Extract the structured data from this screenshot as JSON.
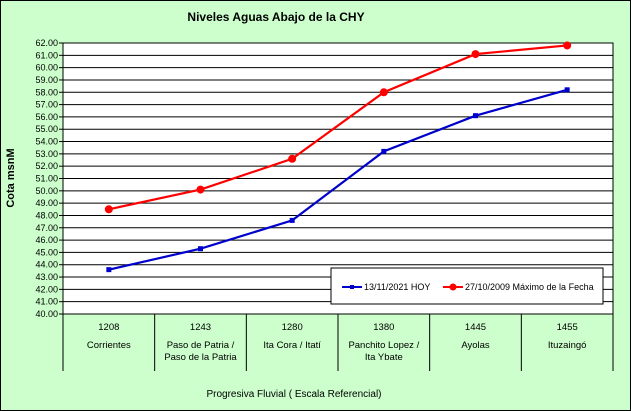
{
  "chart_data": {
    "type": "line",
    "title": "Niveles Aguas Abajo de la CHY",
    "ylabel": "Cota msnM",
    "xlabel": "Progresiva Fluvial ( Escala Referencial)",
    "ylim": [
      40.0,
      62.0
    ],
    "ytick_step": 1.0,
    "grid": true,
    "legend_position": "bottom-right",
    "categories": [
      {
        "code": "1208",
        "names": [
          "Corrientes"
        ]
      },
      {
        "code": "1243",
        "names": [
          "Paso de Patria /",
          "Paso de la Patria"
        ]
      },
      {
        "code": "1280",
        "names": [
          "Ita Cora / Itatí"
        ]
      },
      {
        "code": "1380",
        "names": [
          "Panchito Lopez /",
          "Ita Ybate"
        ]
      },
      {
        "code": "1445",
        "names": [
          "Ayolas"
        ]
      },
      {
        "code": "1455",
        "names": [
          "Ituzaingó"
        ]
      }
    ],
    "series": [
      {
        "name": "13/11/2021 HOY",
        "color": "#0000cc",
        "marker": "square",
        "values": [
          43.6,
          45.3,
          47.6,
          53.2,
          56.1,
          58.2
        ]
      },
      {
        "name": "27/10/2009 Máximo de la Fecha",
        "color": "#ff0000",
        "marker": "circle",
        "values": [
          48.5,
          50.1,
          52.6,
          58.0,
          61.1,
          61.8
        ]
      }
    ]
  }
}
